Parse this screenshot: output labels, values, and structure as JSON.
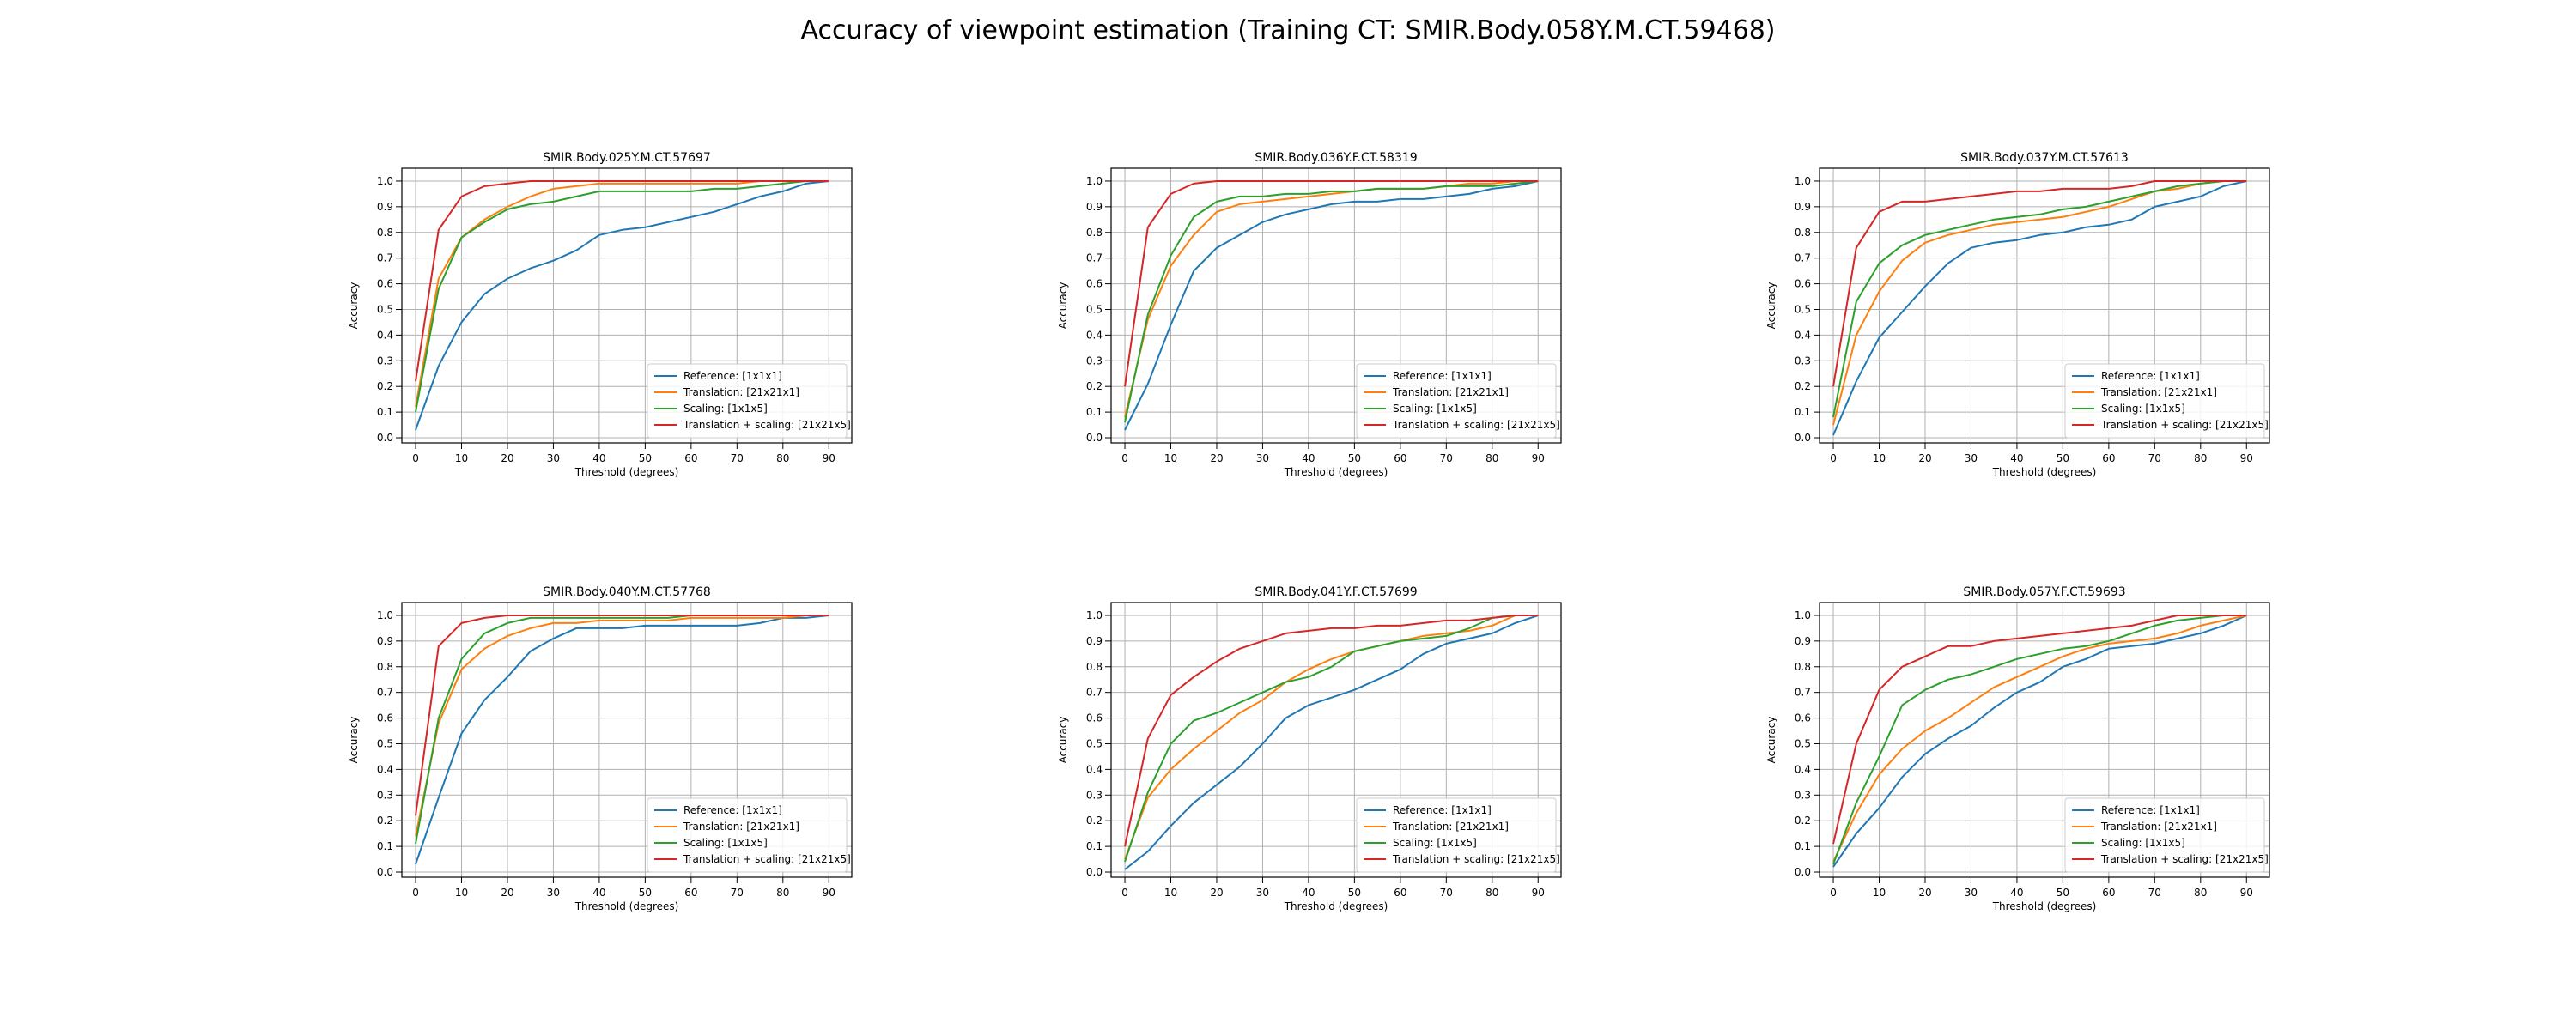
{
  "figure": {
    "title": "Accuracy of viewpoint estimation (Training CT: SMIR.Body.058Y.M.CT.59468)"
  },
  "colors": {
    "series": [
      "#1f77b4",
      "#ff7f0e",
      "#2ca02c",
      "#d62728"
    ],
    "grid": "#b0b0b0"
  },
  "chart_data": [
    {
      "type": "line",
      "title": "SMIR.Body.025Y.M.CT.57697",
      "xlabel": "Threshold (degrees)",
      "ylabel": "Accuracy",
      "xlim": [
        -3,
        95
      ],
      "ylim": [
        -0.02,
        1.05
      ],
      "xticks": [
        0,
        10,
        20,
        30,
        40,
        50,
        60,
        70,
        80,
        90
      ],
      "yticks": [
        0.0,
        0.1,
        0.2,
        0.3,
        0.4,
        0.5,
        0.6,
        0.7,
        0.8,
        0.9,
        1.0
      ],
      "grid": true,
      "legend_position": "lower-right",
      "x": [
        0,
        5,
        10,
        15,
        20,
        25,
        30,
        35,
        40,
        45,
        50,
        55,
        60,
        65,
        70,
        75,
        80,
        85,
        90
      ],
      "series": [
        {
          "name": "Reference: [1x1x1]",
          "values": [
            0.03,
            0.28,
            0.45,
            0.56,
            0.62,
            0.66,
            0.69,
            0.73,
            0.79,
            0.81,
            0.82,
            0.84,
            0.86,
            0.88,
            0.91,
            0.94,
            0.96,
            0.99,
            1.0
          ]
        },
        {
          "name": "Translation: [21x21x1]",
          "values": [
            0.12,
            0.62,
            0.78,
            0.85,
            0.9,
            0.94,
            0.97,
            0.98,
            0.99,
            0.99,
            0.99,
            0.99,
            0.99,
            0.99,
            0.99,
            1.0,
            1.0,
            1.0,
            1.0
          ]
        },
        {
          "name": "Scaling: [1x1x5]",
          "values": [
            0.1,
            0.58,
            0.78,
            0.84,
            0.89,
            0.91,
            0.92,
            0.94,
            0.96,
            0.96,
            0.96,
            0.96,
            0.96,
            0.97,
            0.97,
            0.98,
            0.99,
            1.0,
            1.0
          ]
        },
        {
          "name": "Translation + scaling: [21x21x5]",
          "values": [
            0.22,
            0.81,
            0.94,
            0.98,
            0.99,
            1.0,
            1.0,
            1.0,
            1.0,
            1.0,
            1.0,
            1.0,
            1.0,
            1.0,
            1.0,
            1.0,
            1.0,
            1.0,
            1.0
          ]
        }
      ]
    },
    {
      "type": "line",
      "title": "SMIR.Body.036Y.F.CT.58319",
      "xlabel": "Threshold (degrees)",
      "ylabel": "Accuracy",
      "xlim": [
        -3,
        95
      ],
      "ylim": [
        -0.02,
        1.05
      ],
      "xticks": [
        0,
        10,
        20,
        30,
        40,
        50,
        60,
        70,
        80,
        90
      ],
      "yticks": [
        0.0,
        0.1,
        0.2,
        0.3,
        0.4,
        0.5,
        0.6,
        0.7,
        0.8,
        0.9,
        1.0
      ],
      "grid": true,
      "legend_position": "lower-right",
      "x": [
        0,
        5,
        10,
        15,
        20,
        25,
        30,
        35,
        40,
        45,
        50,
        55,
        60,
        65,
        70,
        75,
        80,
        85,
        90
      ],
      "series": [
        {
          "name": "Reference: [1x1x1]",
          "values": [
            0.03,
            0.21,
            0.44,
            0.65,
            0.74,
            0.79,
            0.84,
            0.87,
            0.89,
            0.91,
            0.92,
            0.92,
            0.93,
            0.93,
            0.94,
            0.95,
            0.97,
            0.98,
            1.0
          ]
        },
        {
          "name": "Translation: [21x21x1]",
          "values": [
            0.08,
            0.46,
            0.67,
            0.79,
            0.88,
            0.91,
            0.92,
            0.93,
            0.94,
            0.95,
            0.96,
            0.97,
            0.97,
            0.97,
            0.98,
            0.99,
            0.99,
            1.0,
            1.0
          ]
        },
        {
          "name": "Scaling: [1x1x5]",
          "values": [
            0.06,
            0.48,
            0.71,
            0.86,
            0.92,
            0.94,
            0.94,
            0.95,
            0.95,
            0.96,
            0.96,
            0.97,
            0.97,
            0.97,
            0.98,
            0.98,
            0.98,
            0.99,
            1.0
          ]
        },
        {
          "name": "Translation + scaling: [21x21x5]",
          "values": [
            0.2,
            0.82,
            0.95,
            0.99,
            1.0,
            1.0,
            1.0,
            1.0,
            1.0,
            1.0,
            1.0,
            1.0,
            1.0,
            1.0,
            1.0,
            1.0,
            1.0,
            1.0,
            1.0
          ]
        }
      ]
    },
    {
      "type": "line",
      "title": "SMIR.Body.037Y.M.CT.57613",
      "xlabel": "Threshold (degrees)",
      "ylabel": "Accuracy",
      "xlim": [
        -3,
        95
      ],
      "ylim": [
        -0.02,
        1.05
      ],
      "xticks": [
        0,
        10,
        20,
        30,
        40,
        50,
        60,
        70,
        80,
        90
      ],
      "yticks": [
        0.0,
        0.1,
        0.2,
        0.3,
        0.4,
        0.5,
        0.6,
        0.7,
        0.8,
        0.9,
        1.0
      ],
      "grid": true,
      "legend_position": "lower-right",
      "x": [
        0,
        5,
        10,
        15,
        20,
        25,
        30,
        35,
        40,
        45,
        50,
        55,
        60,
        65,
        70,
        75,
        80,
        85,
        90
      ],
      "series": [
        {
          "name": "Reference: [1x1x1]",
          "values": [
            0.01,
            0.22,
            0.39,
            0.49,
            0.59,
            0.68,
            0.74,
            0.76,
            0.77,
            0.79,
            0.8,
            0.82,
            0.83,
            0.85,
            0.9,
            0.92,
            0.94,
            0.98,
            1.0
          ]
        },
        {
          "name": "Translation: [21x21x1]",
          "values": [
            0.05,
            0.4,
            0.57,
            0.69,
            0.76,
            0.79,
            0.81,
            0.83,
            0.84,
            0.85,
            0.86,
            0.88,
            0.9,
            0.93,
            0.96,
            0.97,
            0.99,
            1.0,
            1.0
          ]
        },
        {
          "name": "Scaling: [1x1x5]",
          "values": [
            0.08,
            0.53,
            0.68,
            0.75,
            0.79,
            0.81,
            0.83,
            0.85,
            0.86,
            0.87,
            0.89,
            0.9,
            0.92,
            0.94,
            0.96,
            0.98,
            0.99,
            1.0,
            1.0
          ]
        },
        {
          "name": "Translation + scaling: [21x21x5]",
          "values": [
            0.2,
            0.74,
            0.88,
            0.92,
            0.92,
            0.93,
            0.94,
            0.95,
            0.96,
            0.96,
            0.97,
            0.97,
            0.97,
            0.98,
            1.0,
            1.0,
            1.0,
            1.0,
            1.0
          ]
        }
      ]
    },
    {
      "type": "line",
      "title": "SMIR.Body.040Y.M.CT.57768",
      "xlabel": "Threshold (degrees)",
      "ylabel": "Accuracy",
      "xlim": [
        -3,
        95
      ],
      "ylim": [
        -0.02,
        1.05
      ],
      "xticks": [
        0,
        10,
        20,
        30,
        40,
        50,
        60,
        70,
        80,
        90
      ],
      "yticks": [
        0.0,
        0.1,
        0.2,
        0.3,
        0.4,
        0.5,
        0.6,
        0.7,
        0.8,
        0.9,
        1.0
      ],
      "grid": true,
      "legend_position": "lower-right",
      "x": [
        0,
        5,
        10,
        15,
        20,
        25,
        30,
        35,
        40,
        45,
        50,
        55,
        60,
        65,
        70,
        75,
        80,
        85,
        90
      ],
      "series": [
        {
          "name": "Reference: [1x1x1]",
          "values": [
            0.03,
            0.29,
            0.54,
            0.67,
            0.76,
            0.86,
            0.91,
            0.95,
            0.95,
            0.95,
            0.96,
            0.96,
            0.96,
            0.96,
            0.96,
            0.97,
            0.99,
            0.99,
            1.0
          ]
        },
        {
          "name": "Translation: [21x21x1]",
          "values": [
            0.14,
            0.58,
            0.79,
            0.87,
            0.92,
            0.95,
            0.97,
            0.97,
            0.98,
            0.98,
            0.98,
            0.98,
            0.99,
            0.99,
            0.99,
            0.99,
            0.99,
            1.0,
            1.0
          ]
        },
        {
          "name": "Scaling: [1x1x5]",
          "values": [
            0.11,
            0.6,
            0.83,
            0.93,
            0.97,
            0.99,
            0.99,
            0.99,
            0.99,
            0.99,
            0.99,
            0.99,
            1.0,
            1.0,
            1.0,
            1.0,
            1.0,
            1.0,
            1.0
          ]
        },
        {
          "name": "Translation + scaling: [21x21x5]",
          "values": [
            0.22,
            0.88,
            0.97,
            0.99,
            1.0,
            1.0,
            1.0,
            1.0,
            1.0,
            1.0,
            1.0,
            1.0,
            1.0,
            1.0,
            1.0,
            1.0,
            1.0,
            1.0,
            1.0
          ]
        }
      ]
    },
    {
      "type": "line",
      "title": "SMIR.Body.041Y.F.CT.57699",
      "xlabel": "Threshold (degrees)",
      "ylabel": "Accuracy",
      "xlim": [
        -3,
        95
      ],
      "ylim": [
        -0.02,
        1.05
      ],
      "xticks": [
        0,
        10,
        20,
        30,
        40,
        50,
        60,
        70,
        80,
        90
      ],
      "yticks": [
        0.0,
        0.1,
        0.2,
        0.3,
        0.4,
        0.5,
        0.6,
        0.7,
        0.8,
        0.9,
        1.0
      ],
      "grid": true,
      "legend_position": "lower-right",
      "x": [
        0,
        5,
        10,
        15,
        20,
        25,
        30,
        35,
        40,
        45,
        50,
        55,
        60,
        65,
        70,
        75,
        80,
        85,
        90
      ],
      "series": [
        {
          "name": "Reference: [1x1x1]",
          "values": [
            0.01,
            0.08,
            0.18,
            0.27,
            0.34,
            0.41,
            0.5,
            0.6,
            0.65,
            0.68,
            0.71,
            0.75,
            0.79,
            0.85,
            0.89,
            0.91,
            0.93,
            0.97,
            1.0
          ]
        },
        {
          "name": "Translation: [21x21x1]",
          "values": [
            0.05,
            0.29,
            0.4,
            0.48,
            0.55,
            0.62,
            0.67,
            0.74,
            0.79,
            0.83,
            0.86,
            0.88,
            0.9,
            0.92,
            0.93,
            0.94,
            0.96,
            1.0,
            1.0
          ]
        },
        {
          "name": "Scaling: [1x1x5]",
          "values": [
            0.04,
            0.31,
            0.5,
            0.59,
            0.62,
            0.66,
            0.7,
            0.74,
            0.76,
            0.8,
            0.86,
            0.88,
            0.9,
            0.91,
            0.92,
            0.95,
            0.99,
            1.0,
            1.0
          ]
        },
        {
          "name": "Translation + scaling: [21x21x5]",
          "values": [
            0.1,
            0.52,
            0.69,
            0.76,
            0.82,
            0.87,
            0.9,
            0.93,
            0.94,
            0.95,
            0.95,
            0.96,
            0.96,
            0.97,
            0.98,
            0.98,
            0.99,
            1.0,
            1.0
          ]
        }
      ]
    },
    {
      "type": "line",
      "title": "SMIR.Body.057Y.F.CT.59693",
      "xlabel": "Threshold (degrees)",
      "ylabel": "Accuracy",
      "xlim": [
        -3,
        95
      ],
      "ylim": [
        -0.02,
        1.05
      ],
      "xticks": [
        0,
        10,
        20,
        30,
        40,
        50,
        60,
        70,
        80,
        90
      ],
      "yticks": [
        0.0,
        0.1,
        0.2,
        0.3,
        0.4,
        0.5,
        0.6,
        0.7,
        0.8,
        0.9,
        1.0
      ],
      "grid": true,
      "legend_position": "lower-right",
      "x": [
        0,
        5,
        10,
        15,
        20,
        25,
        30,
        35,
        40,
        45,
        50,
        55,
        60,
        65,
        70,
        75,
        80,
        85,
        90
      ],
      "series": [
        {
          "name": "Reference: [1x1x1]",
          "values": [
            0.02,
            0.15,
            0.25,
            0.37,
            0.46,
            0.52,
            0.57,
            0.64,
            0.7,
            0.74,
            0.8,
            0.83,
            0.87,
            0.88,
            0.89,
            0.91,
            0.93,
            0.96,
            1.0
          ]
        },
        {
          "name": "Translation: [21x21x1]",
          "values": [
            0.04,
            0.23,
            0.38,
            0.48,
            0.55,
            0.6,
            0.66,
            0.72,
            0.76,
            0.8,
            0.84,
            0.87,
            0.89,
            0.9,
            0.91,
            0.93,
            0.96,
            0.98,
            1.0
          ]
        },
        {
          "name": "Scaling: [1x1x5]",
          "values": [
            0.03,
            0.27,
            0.45,
            0.65,
            0.71,
            0.75,
            0.77,
            0.8,
            0.83,
            0.85,
            0.87,
            0.88,
            0.9,
            0.93,
            0.96,
            0.98,
            0.99,
            1.0,
            1.0
          ]
        },
        {
          "name": "Translation + scaling: [21x21x5]",
          "values": [
            0.11,
            0.5,
            0.71,
            0.8,
            0.84,
            0.88,
            0.88,
            0.9,
            0.91,
            0.92,
            0.93,
            0.94,
            0.95,
            0.96,
            0.98,
            1.0,
            1.0,
            1.0,
            1.0
          ]
        }
      ]
    }
  ]
}
